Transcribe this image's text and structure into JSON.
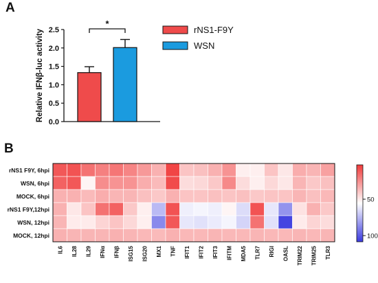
{
  "panels": {
    "a_letter": "A",
    "b_letter": "B"
  },
  "chart_data": [
    {
      "panel": "A",
      "type": "bar",
      "ylabel": "Relative IFNβ-luc activity",
      "ylim": [
        0,
        2.5
      ],
      "yticks": [
        "0.0",
        "0.5",
        "1.0",
        "1.5",
        "2.0",
        "2.5"
      ],
      "categories": [
        "rNS1-F9Y",
        "WSN"
      ],
      "values": [
        1.33,
        2.01
      ],
      "errors": [
        0.16,
        0.22
      ],
      "colors": [
        "#ef4b4b",
        "#1b9bdf"
      ],
      "significance": {
        "label": "*",
        "between": [
          0,
          1
        ]
      },
      "legend": {
        "position": "right",
        "entries": [
          "rNS1-F9Y",
          "WSN"
        ]
      }
    },
    {
      "panel": "B",
      "type": "heatmap",
      "rows": [
        "rNS1 F9Y, 6hpi",
        "WSN, 6hpi",
        "MOCK, 6hpi",
        "rNS1 F9Y,12hpi",
        "WSN, 12hpi",
        "MOCK, 12hpi"
      ],
      "columns": [
        "IL6",
        "IL28",
        "IL29",
        "IFNα",
        "IFNβ",
        "ISG15",
        "ISG20",
        "MX1",
        "TNF",
        "IFIT1",
        "IFIT2",
        "IFIT3",
        "IFITM",
        "MDA5",
        "TLR7",
        "RIGI",
        "OASL",
        "TRIM22",
        "TRIM25",
        "TLR3"
      ],
      "values": [
        [
          85,
          88,
          72,
          65,
          70,
          62,
          52,
          40,
          95,
          30,
          32,
          40,
          55,
          8,
          8,
          30,
          12,
          42,
          38,
          48
        ],
        [
          80,
          85,
          5,
          58,
          55,
          55,
          42,
          35,
          92,
          18,
          20,
          28,
          60,
          18,
          8,
          20,
          12,
          38,
          28,
          32
        ],
        [
          40,
          40,
          35,
          42,
          38,
          38,
          32,
          28,
          40,
          30,
          30,
          32,
          30,
          32,
          28,
          30,
          30,
          38,
          32,
          36
        ],
        [
          40,
          12,
          30,
          72,
          80,
          28,
          8,
          -35,
          88,
          -8,
          -5,
          -8,
          5,
          -18,
          88,
          -12,
          -55,
          15,
          40,
          28
        ],
        [
          38,
          10,
          10,
          22,
          30,
          20,
          8,
          -60,
          85,
          -12,
          -15,
          -10,
          -5,
          -22,
          72,
          -15,
          -95,
          10,
          22,
          18
        ],
        [
          40,
          38,
          38,
          38,
          40,
          38,
          36,
          35,
          40,
          36,
          36,
          38,
          36,
          36,
          38,
          36,
          36,
          38,
          36,
          38
        ]
      ],
      "colorbar": {
        "ticks": [
          "50",
          "100"
        ],
        "colors": [
          "#f03b3b",
          "#ffffff",
          "#3a3adf"
        ]
      }
    }
  ]
}
